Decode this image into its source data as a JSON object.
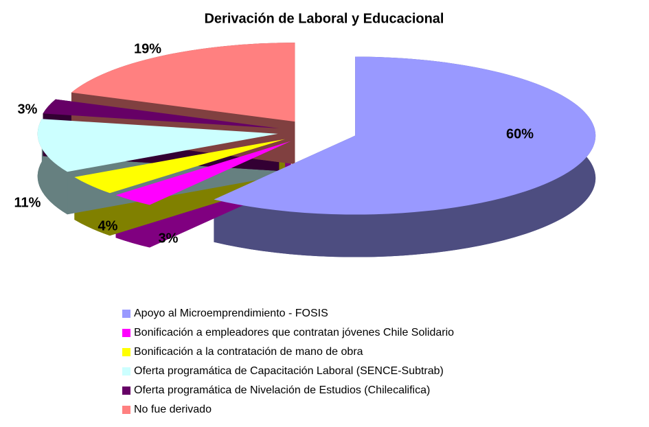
{
  "chart_data": {
    "type": "pie3d",
    "title": "Derivación de Laboral y Educacional",
    "categories": [
      "Apoyo al Microemprendimiento - FOSIS",
      "Bonificación a empleadores que contratan jóvenes Chile Solidario",
      "Bonificación a la contratación de mano de obra",
      "Oferta programática de Capacitación Laboral (SENCE-Subtrab)",
      "Oferta programática de Nivelación de Estudios (Chilecalifica)",
      "No fue derivado"
    ],
    "values": [
      60,
      3,
      4,
      11,
      3,
      19
    ],
    "value_labels": [
      "60%",
      "3%",
      "4%",
      "11%",
      "3%",
      "19%"
    ],
    "colors": [
      "#9999ff",
      "#ff00ff",
      "#ffff00",
      "#ccffff",
      "#660066",
      "#ff8080"
    ],
    "side_colors": [
      "#4d4d80",
      "#800080",
      "#808000",
      "#668080",
      "#330033",
      "#804040"
    ],
    "legend": "bottom"
  }
}
